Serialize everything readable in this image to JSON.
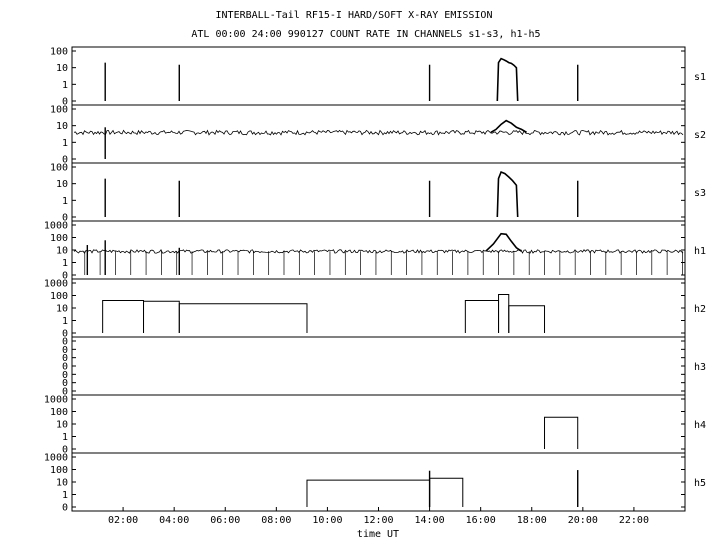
{
  "header": {
    "title": "INTERBALL-Tail RF15-I HARD/SOFT X-RAY EMISSION",
    "subtitle": "ATL 00:00 24:00 990127  COUNT RATE IN CHANNELS s1-s3, h1-h5"
  },
  "chart_data": {
    "type": "line",
    "title": "INTERBALL-Tail RF15-I HARD/SOFT X-RAY EMISSION",
    "subtitle": "ATL 00:00 24:00 990127  COUNT RATE IN CHANNELS s1-s3, h1-h5",
    "xlabel": "time UT",
    "xlim": [
      0,
      24
    ],
    "x_ticks": [
      2,
      4,
      6,
      8,
      10,
      12,
      14,
      16,
      18,
      20,
      22
    ],
    "x_tick_labels": [
      "02:00",
      "04:00",
      "06:00",
      "08:00",
      "10:00",
      "12:00",
      "14:00",
      "16:00",
      "18:00",
      "20:00",
      "22:00"
    ],
    "y_scale": "log",
    "panels": [
      {
        "name": "s1",
        "ytick_labels": [
          "100",
          "10",
          "1",
          "0"
        ],
        "spikes": [
          {
            "x": 1.3,
            "y": 20
          },
          {
            "x": 4.2,
            "y": 15
          },
          {
            "x": 14.0,
            "y": 15
          },
          {
            "x": 19.8,
            "y": 15
          }
        ],
        "segments": [
          {
            "x": [
              16.65,
              16.7,
              16.8,
              16.9,
              17.0,
              17.1,
              17.2,
              17.3,
              17.4,
              17.45
            ],
            "y": [
              0.3,
              20,
              35,
              30,
              25,
              20,
              18,
              14,
              10,
              0.3
            ]
          }
        ]
      },
      {
        "name": "s2",
        "ytick_labels": [
          "100",
          "10",
          "1",
          "0"
        ],
        "baseline": 4,
        "spikes": [
          {
            "x": 1.3,
            "y": 8
          }
        ],
        "segments": [
          {
            "x": [
              16.4,
              16.6,
              16.8,
              17.0,
              17.2,
              17.4,
              17.6,
              17.8
            ],
            "y": [
              4,
              6,
              12,
              20,
              14,
              8,
              6,
              4
            ]
          }
        ]
      },
      {
        "name": "s3",
        "ytick_labels": [
          "100",
          "10",
          "1",
          "0"
        ],
        "spikes": [
          {
            "x": 1.3,
            "y": 20
          },
          {
            "x": 4.2,
            "y": 15
          },
          {
            "x": 14.0,
            "y": 15
          },
          {
            "x": 19.8,
            "y": 15
          }
        ],
        "segments": [
          {
            "x": [
              16.65,
              16.7,
              16.8,
              16.95,
              17.1,
              17.25,
              17.4,
              17.45
            ],
            "y": [
              0.3,
              20,
              50,
              40,
              25,
              15,
              8,
              0.3
            ]
          }
        ]
      },
      {
        "name": "h1",
        "ytick_labels": [
          "1000",
          "100",
          "10",
          "1",
          "0"
        ],
        "baseline": 8,
        "spikes": [
          {
            "x": 0.6,
            "y": 25
          },
          {
            "x": 1.3,
            "y": 60
          },
          {
            "x": 4.2,
            "y": 15
          }
        ],
        "segments": [
          {
            "x": [
              16.2,
              16.5,
              16.8,
              17.0,
              17.2,
              17.4,
              17.6
            ],
            "y": [
              8,
              30,
              200,
              180,
              50,
              15,
              8
            ]
          }
        ]
      },
      {
        "name": "h2",
        "ytick_labels": [
          "1000",
          "100",
          "10",
          "1",
          "0"
        ],
        "steps": [
          {
            "x": [
              1.2,
              2.8
            ],
            "y": 40
          },
          {
            "x": [
              2.8,
              4.2
            ],
            "y": 35
          },
          {
            "x": [
              4.2,
              9.2
            ],
            "y": 22
          },
          {
            "x": [
              15.4,
              16.7
            ],
            "y": 40
          },
          {
            "x": [
              16.7,
              17.1
            ],
            "y": 120
          },
          {
            "x": [
              17.1,
              18.5
            ],
            "y": 15
          }
        ]
      },
      {
        "name": "h3",
        "ytick_labels": [
          "0",
          "0",
          "0",
          "0",
          "0",
          "0",
          "0"
        ],
        "steps": []
      },
      {
        "name": "h4",
        "ytick_labels": [
          "1000",
          "100",
          "10",
          "1",
          "0"
        ],
        "steps": [
          {
            "x": [
              18.5,
              19.8
            ],
            "y": 35
          }
        ]
      },
      {
        "name": "h5",
        "ytick_labels": [
          "1000",
          "100",
          "10",
          "1",
          "0"
        ],
        "spikes": [
          {
            "x": 14.0,
            "y": 80
          }
        ],
        "steps": [
          {
            "x": [
              9.2,
              14.0
            ],
            "y": 14
          },
          {
            "x": [
              14.0,
              15.3
            ],
            "y": 20
          }
        ],
        "extra_spikes": [
          {
            "x": 19.8,
            "y": 90
          }
        ]
      }
    ]
  }
}
